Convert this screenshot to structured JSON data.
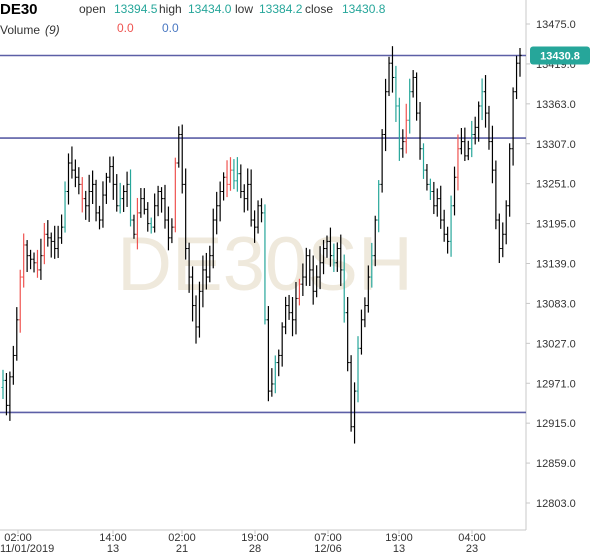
{
  "header": {
    "symbol": "DE30",
    "open_label": "open",
    "open_value": "13394.5",
    "high_label": "high",
    "high_value": "13434.0",
    "low_label": "low",
    "low_value": "13384.2",
    "close_label": "close",
    "close_value": "13430.8",
    "volume_label": "Volume",
    "volume_param": "(9)",
    "volume_value_1": "0.0",
    "volume_value_2": "0.0"
  },
  "watermark": "DE30SH",
  "current_price_label": "13430.8",
  "colors": {
    "up": "#26a69a",
    "down": "#ef5350",
    "neutral_bar": "#000000",
    "hline": "#5c5fa6",
    "price_tag": "#26a69a",
    "axis": "#c8c8c8"
  },
  "chart_data": {
    "type": "ohlc",
    "symbol": "DE30",
    "ylim": [
      12775,
      13475
    ],
    "y_ticks": [
      "13475.0",
      "13419.0",
      "13363.0",
      "13307.0",
      "13251.0",
      "13195.0",
      "13139.0",
      "13083.0",
      "13027.0",
      "12971.0",
      "12915.0",
      "12859.0",
      "12803.0"
    ],
    "x_ticks": [
      {
        "time": "02:00",
        "date": "11/01/2019"
      },
      {
        "time": "14:00",
        "date": "13"
      },
      {
        "time": "02:00",
        "date": "21"
      },
      {
        "time": "19:00",
        "date": "28"
      },
      {
        "time": "07:00",
        "date": "12/06"
      },
      {
        "time": "19:00",
        "date": "13"
      },
      {
        "time": "04:00",
        "date": "23"
      }
    ],
    "horizontal_lines": [
      13430.8,
      13315,
      12930
    ],
    "current_price": 13430.8,
    "last_bar": {
      "open": 13394.5,
      "high": 13434.0,
      "low": 13384.2,
      "close": 13430.8
    },
    "closes": [
      12975,
      12940,
      12980,
      13010,
      13060,
      13120,
      13165,
      13150,
      13145,
      13140,
      13130,
      13150,
      13180,
      13175,
      13170,
      13160,
      13175,
      13190,
      13240,
      13280,
      13270,
      13260,
      13250,
      13230,
      13220,
      13240,
      13250,
      13210,
      13200,
      13235,
      13260,
      13275,
      13250,
      13220,
      13230,
      13240,
      13250,
      13200,
      13180,
      13210,
      13230,
      13215,
      13195,
      13190,
      13220,
      13240,
      13230,
      13200,
      13175,
      13190,
      13280,
      13320,
      13250,
      13160,
      13120,
      13080,
      13050,
      13100,
      13130,
      13120,
      13150,
      13200,
      13220,
      13240,
      13260,
      13250,
      13270,
      13255,
      13265,
      13240,
      13230,
      13250,
      13200,
      13190,
      13220,
      13210,
      13060,
      12960,
      12970,
      13000,
      13010,
      13050,
      13080,
      13070,
      13060,
      13090,
      13110,
      13120,
      13150,
      13130,
      13100,
      13120,
      13140,
      13160,
      13170,
      13150,
      13140,
      13160,
      13130,
      13070,
      13000,
      12910,
      12960,
      13020,
      13060,
      13080,
      13120,
      13150,
      13200,
      13250,
      13320,
      13380,
      13420,
      13400,
      13360,
      13300,
      13310,
      13340,
      13380,
      13400,
      13350,
      13300,
      13270,
      13250,
      13240,
      13220,
      13230,
      13200,
      13180,
      13170,
      13220,
      13260,
      13300,
      13310,
      13290,
      13300,
      13320,
      13330,
      13360,
      13380,
      13350,
      13310,
      13270,
      13200,
      13160,
      13180,
      13220,
      13300,
      13380,
      13420,
      13431
    ]
  }
}
